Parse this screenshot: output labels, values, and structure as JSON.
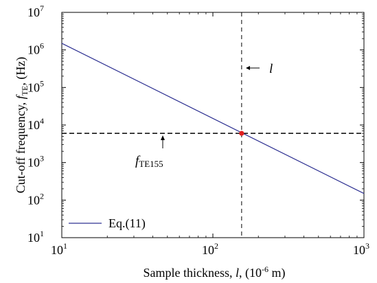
{
  "chart_data": {
    "type": "line",
    "xlabel": "Sample thickness, l, (10-6 m)",
    "xlabel_parts": {
      "pre": "Sample thickness, ",
      "var": "l",
      "mid": ", (10",
      "sup": "-6",
      "post": " m)"
    },
    "ylabel": "Cut-off frequency, fTE, (Hz)",
    "ylabel_parts": {
      "pre": "Cut-off frequency, ",
      "var": "f",
      "sub": "TE",
      "post": ", (Hz)"
    },
    "xscale": "log",
    "yscale": "log",
    "xlim": [
      10,
      1000
    ],
    "ylim": [
      10,
      10000000
    ],
    "x_ticks": [
      {
        "value": 10,
        "base": "10",
        "exp": "1"
      },
      {
        "value": 100,
        "base": "10",
        "exp": "2"
      },
      {
        "value": 1000,
        "base": "10",
        "exp": "3"
      }
    ],
    "y_ticks": [
      {
        "value": 10,
        "base": "10",
        "exp": "1"
      },
      {
        "value": 100,
        "base": "10",
        "exp": "2"
      },
      {
        "value": 1000,
        "base": "10",
        "exp": "3"
      },
      {
        "value": 10000,
        "base": "10",
        "exp": "4"
      },
      {
        "value": 100000,
        "base": "10",
        "exp": "5"
      },
      {
        "value": 1000000,
        "base": "10",
        "exp": "6"
      },
      {
        "value": 10000000,
        "base": "10",
        "exp": "7"
      }
    ],
    "series": [
      {
        "name": "Eq.(11)",
        "color": "#2e3192",
        "x": [
          10,
          1000
        ],
        "y": [
          1500000,
          150
        ]
      }
    ],
    "highlight_point": {
      "x": 155,
      "y": 6000,
      "color": "#e02020"
    },
    "reference_lines": {
      "horizontal_y": 6000,
      "vertical_x": 155
    },
    "annotations": [
      {
        "id": "l-label",
        "text": "l",
        "italic": true
      },
      {
        "id": "fte-label",
        "var": "f",
        "sub": "TE155"
      }
    ],
    "legend": {
      "position": "bottom-left",
      "entries": [
        "Eq.(11)"
      ]
    },
    "grid": false
  }
}
